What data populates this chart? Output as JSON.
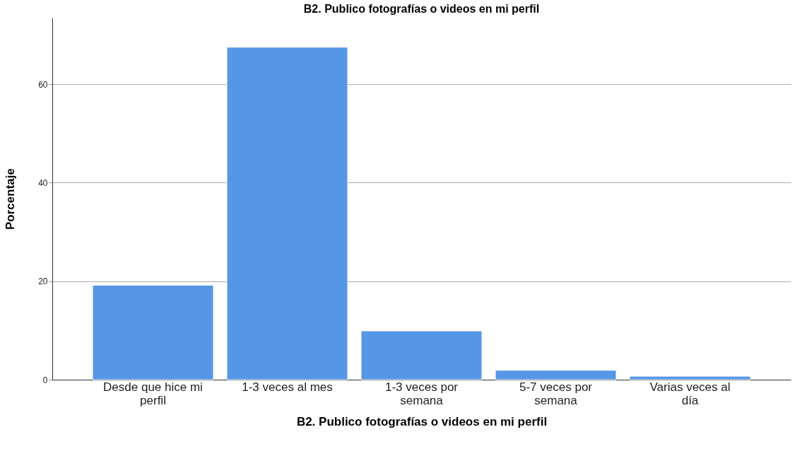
{
  "chart_data": {
    "type": "bar",
    "title": "B2. Publico fotografías o videos en mi perfil",
    "xlabel": "B2. Publico fotografías o videos en mi perfil",
    "ylabel": "Porcentaje",
    "categories": [
      "Desde que hice mi perfil",
      "1-3 veces al mes",
      "1-3 veces por semana",
      "5-7 veces por semana",
      "Varias veces al día"
    ],
    "values": [
      19.2,
      67.5,
      9.9,
      1.9,
      0.7
    ],
    "color": "#5597e6",
    "ylim": [
      0,
      73.5
    ],
    "yticks": [
      0,
      20,
      40,
      60
    ],
    "grid": "y"
  }
}
